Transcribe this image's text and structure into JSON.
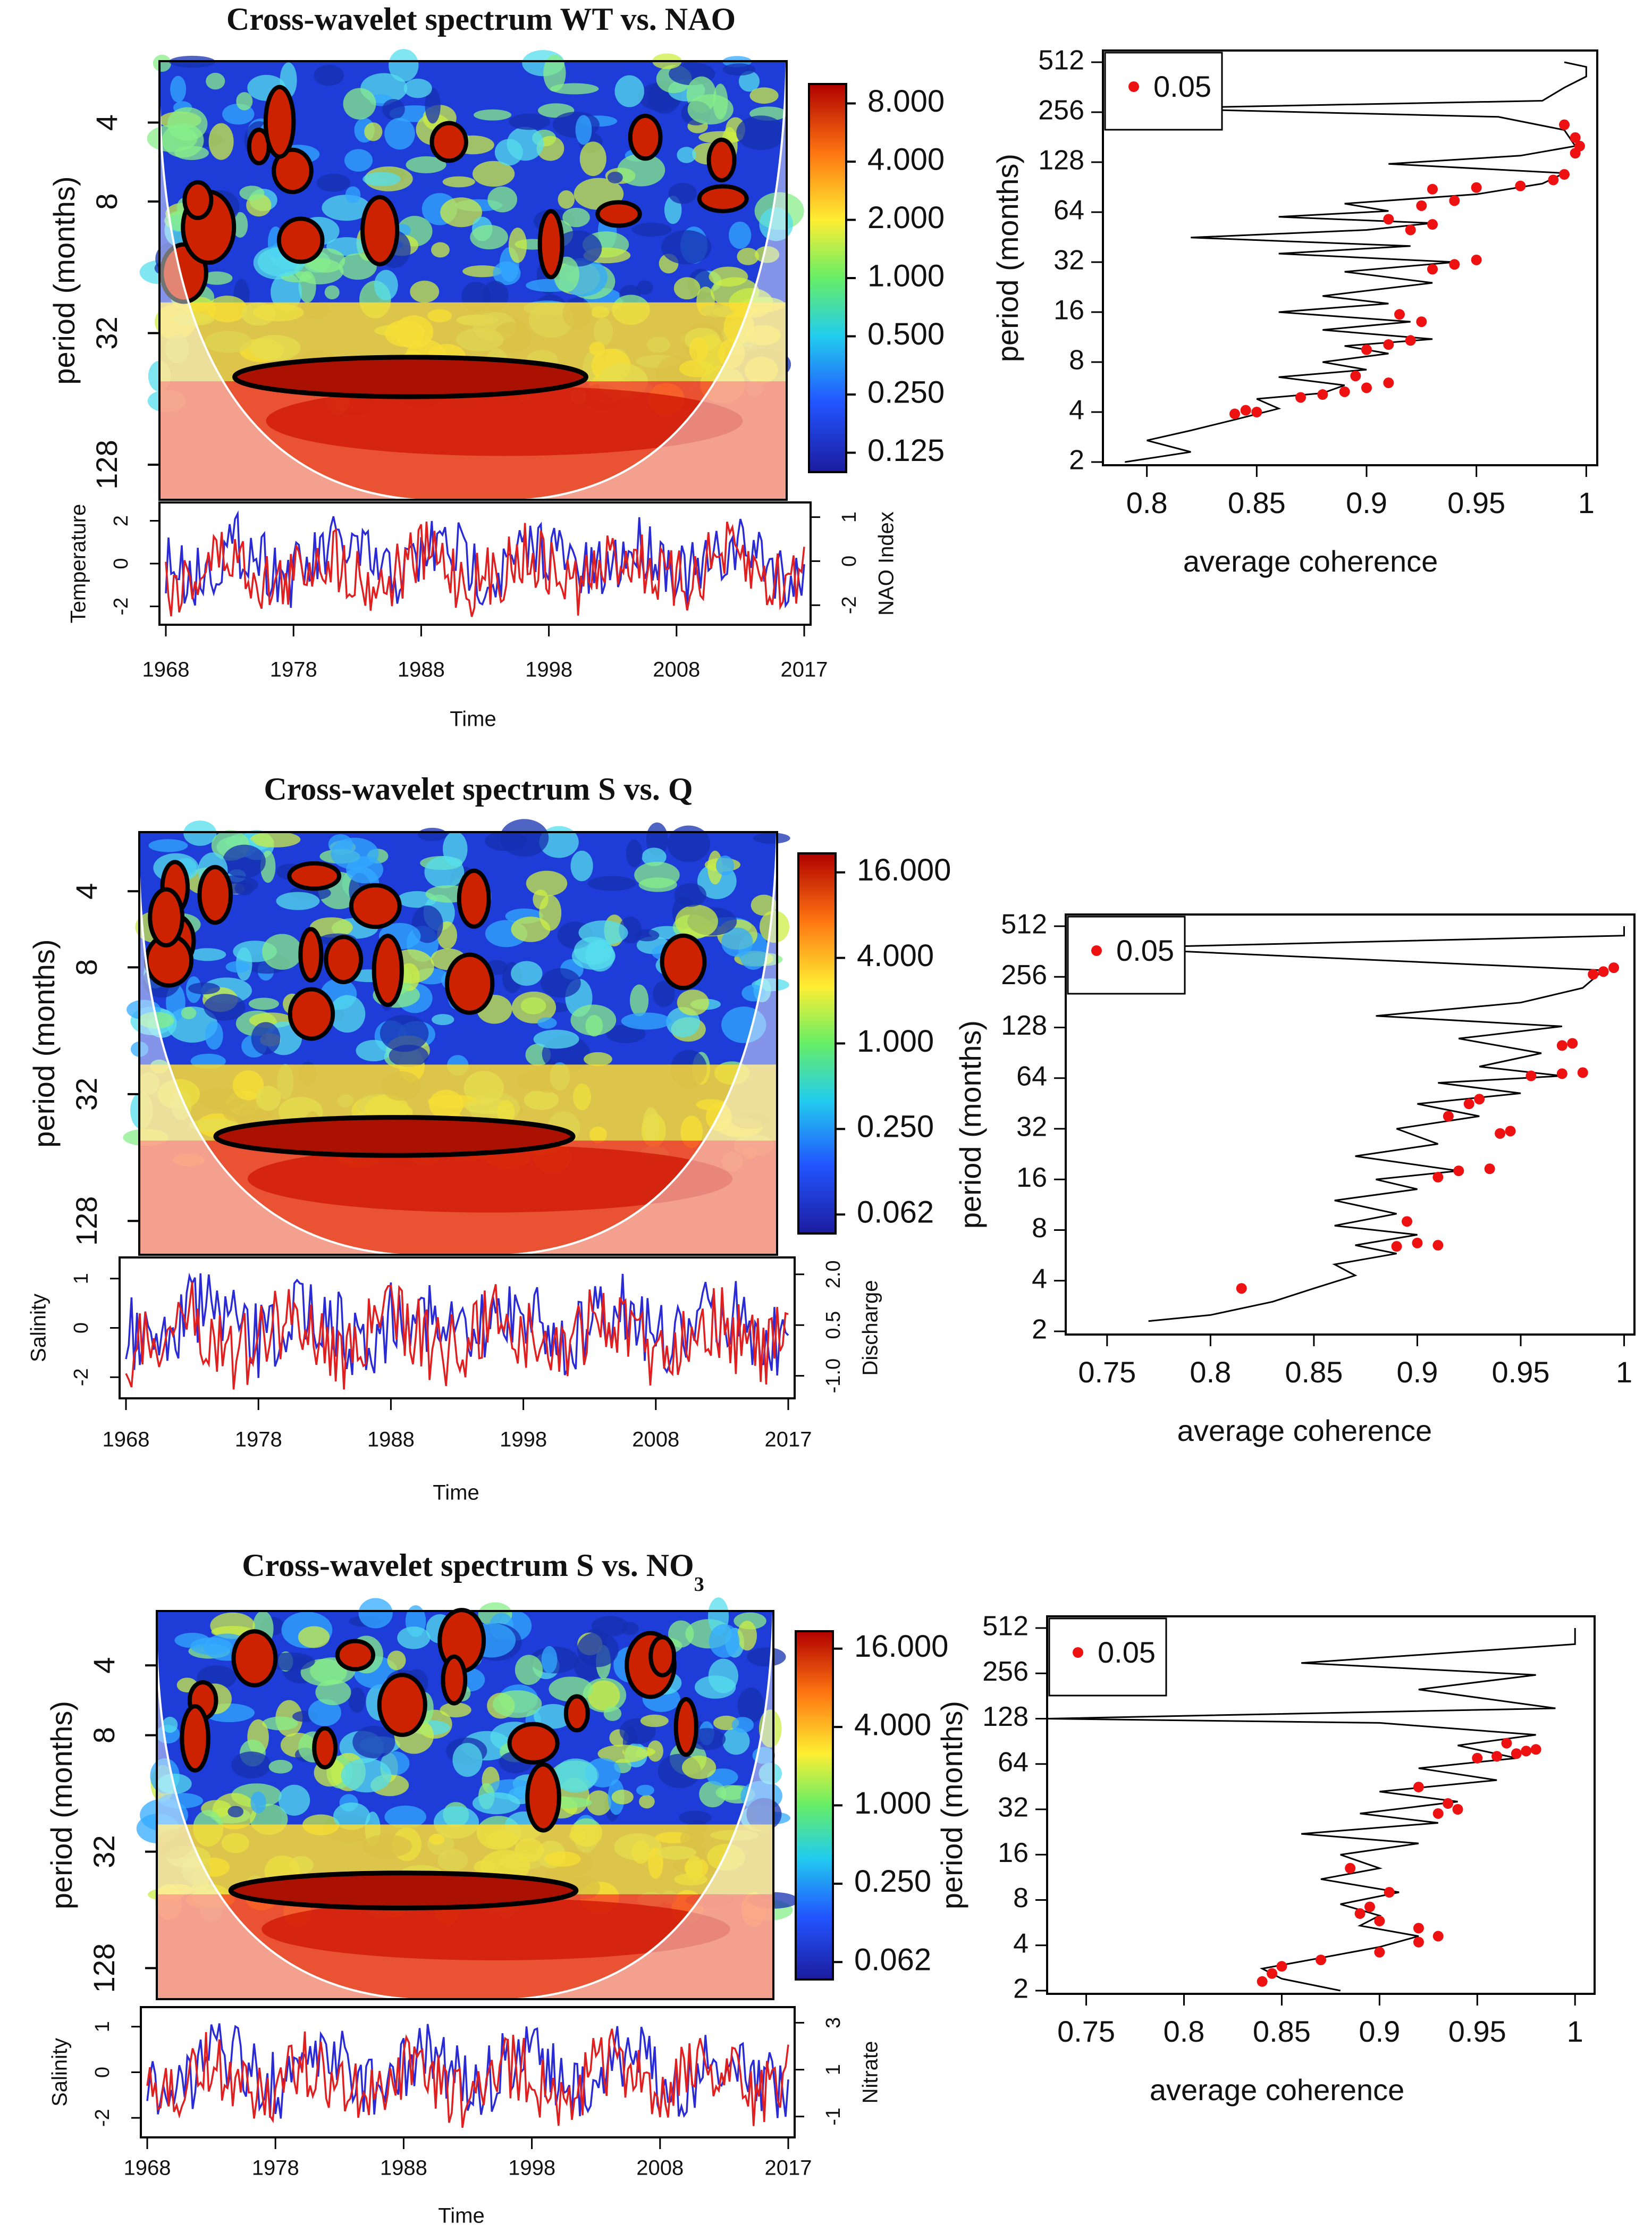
{
  "chart_data": [
    {
      "type": "heatmap",
      "title": "Cross-wavelet spectrum WT vs. NAO",
      "ylabel": "period (months)",
      "yticks": [
        "4",
        "8",
        "32",
        "128"
      ],
      "colorbar_ticks": [
        "8.000",
        "4.000",
        "2.000",
        "1.000",
        "0.500",
        "0.250",
        "0.125"
      ],
      "colors": {
        "low": "#1a1aa0",
        "mid": "#ffff40",
        "high": "#b00000"
      },
      "ts": {
        "left_label": "Temperature",
        "left_ticks": [
          "2",
          "0",
          "-2"
        ],
        "right_label": "NAO Index",
        "right_ticks": [
          "1",
          "0",
          "-2"
        ],
        "xlabel": "Time",
        "x_ticks": [
          "1968",
          "1978",
          "1988",
          "1998",
          "2008",
          "2017"
        ],
        "series": [
          {
            "name": "Temperature",
            "color": "#2b2bd6"
          },
          {
            "name": "NAO Index",
            "color": "#e02020"
          }
        ]
      },
      "coherence": {
        "xlabel": "average coherence",
        "ylabel": "period (months)",
        "x_ticks": [
          "0.8",
          "0.85",
          "0.9",
          "0.95",
          "1"
        ],
        "xlim": [
          0.78,
          1.005
        ],
        "y_ticks": [
          "512",
          "256",
          "128",
          "64",
          "32",
          "16",
          "8",
          "4",
          "2"
        ],
        "legend": "0.05",
        "line": [
          [
            0.79,
            2
          ],
          [
            0.82,
            2.3
          ],
          [
            0.8,
            2.7
          ],
          [
            0.82,
            3.1
          ],
          [
            0.84,
            3.6
          ],
          [
            0.86,
            4.2
          ],
          [
            0.85,
            4.8
          ],
          [
            0.88,
            5.2
          ],
          [
            0.89,
            5.8
          ],
          [
            0.86,
            6.5
          ],
          [
            0.9,
            7.2
          ],
          [
            0.88,
            8
          ],
          [
            0.91,
            9
          ],
          [
            0.89,
            10
          ],
          [
            0.93,
            11
          ],
          [
            0.88,
            12.5
          ],
          [
            0.92,
            14
          ],
          [
            0.86,
            16
          ],
          [
            0.91,
            18
          ],
          [
            0.88,
            20
          ],
          [
            0.93,
            24
          ],
          [
            0.89,
            28
          ],
          [
            0.94,
            32
          ],
          [
            0.86,
            36
          ],
          [
            0.92,
            40
          ],
          [
            0.82,
            45
          ],
          [
            0.9,
            50
          ],
          [
            0.93,
            55
          ],
          [
            0.86,
            60
          ],
          [
            0.91,
            65
          ],
          [
            0.89,
            72
          ],
          [
            0.95,
            82
          ],
          [
            0.98,
            95
          ],
          [
            0.99,
            110
          ],
          [
            0.91,
            125
          ],
          [
            0.97,
            140
          ],
          [
            0.995,
            160
          ],
          [
            0.99,
            200
          ],
          [
            0.96,
            240
          ],
          [
            0.8,
            270
          ],
          [
            0.98,
            300
          ],
          [
            0.99,
            360
          ],
          [
            1.0,
            420
          ],
          [
            1.0,
            480
          ],
          [
            0.99,
            512
          ]
        ],
        "points": [
          [
            0.84,
            3.9
          ],
          [
            0.845,
            4.1
          ],
          [
            0.85,
            4.0
          ],
          [
            0.87,
            4.9
          ],
          [
            0.88,
            5.1
          ],
          [
            0.89,
            5.3
          ],
          [
            0.9,
            5.6
          ],
          [
            0.91,
            6.0
          ],
          [
            0.895,
            6.6
          ],
          [
            0.9,
            9.5
          ],
          [
            0.91,
            10.2
          ],
          [
            0.92,
            10.8
          ],
          [
            0.925,
            14
          ],
          [
            0.915,
            15.5
          ],
          [
            0.93,
            29
          ],
          [
            0.94,
            31
          ],
          [
            0.95,
            33
          ],
          [
            0.92,
            50
          ],
          [
            0.93,
            54
          ],
          [
            0.91,
            58
          ],
          [
            0.925,
            70
          ],
          [
            0.94,
            75
          ],
          [
            0.93,
            88
          ],
          [
            0.95,
            90
          ],
          [
            0.97,
            92
          ],
          [
            0.985,
            100
          ],
          [
            0.99,
            108
          ],
          [
            0.995,
            145
          ],
          [
            0.997,
            160
          ],
          [
            0.995,
            180
          ],
          [
            0.99,
            215
          ]
        ]
      }
    },
    {
      "type": "heatmap",
      "title": "Cross-wavelet spectrum S vs. Q",
      "ylabel": "period (months)",
      "yticks": [
        "4",
        "8",
        "32",
        "128"
      ],
      "colorbar_ticks": [
        "16.000",
        "4.000",
        "1.000",
        "0.250",
        "0.062"
      ],
      "colors": {
        "low": "#1a1aa0",
        "mid": "#ffff40",
        "high": "#b00000"
      },
      "ts": {
        "left_label": "Salinity",
        "left_ticks": [
          "1",
          "0",
          "-2"
        ],
        "right_label": "Discharge",
        "right_ticks": [
          "2.0",
          "0.5",
          "-1.0"
        ],
        "xlabel": "Time",
        "x_ticks": [
          "1968",
          "1978",
          "1988",
          "1998",
          "2008",
          "2017"
        ],
        "series": [
          {
            "name": "Salinity",
            "color": "#2b2bd6"
          },
          {
            "name": "Discharge",
            "color": "#e02020"
          }
        ]
      },
      "coherence": {
        "xlabel": "average coherence",
        "ylabel": "period (months)",
        "x_ticks": [
          "0.75",
          "0.8",
          "0.85",
          "0.9",
          "0.95",
          "1"
        ],
        "xlim": [
          0.73,
          1.005
        ],
        "y_ticks": [
          "512",
          "256",
          "128",
          "64",
          "32",
          "16",
          "8",
          "4",
          "2"
        ],
        "legend": "0.05",
        "line": [
          [
            0.77,
            2.3
          ],
          [
            0.8,
            2.5
          ],
          [
            0.83,
            3.0
          ],
          [
            0.85,
            3.6
          ],
          [
            0.87,
            4.3
          ],
          [
            0.86,
            5
          ],
          [
            0.89,
            5.8
          ],
          [
            0.87,
            6.5
          ],
          [
            0.9,
            7.5
          ],
          [
            0.86,
            8.5
          ],
          [
            0.89,
            10
          ],
          [
            0.86,
            12
          ],
          [
            0.9,
            14
          ],
          [
            0.88,
            16
          ],
          [
            0.92,
            18
          ],
          [
            0.87,
            22
          ],
          [
            0.91,
            26
          ],
          [
            0.89,
            32
          ],
          [
            0.93,
            38
          ],
          [
            0.9,
            45
          ],
          [
            0.95,
            52
          ],
          [
            0.91,
            60
          ],
          [
            0.97,
            66
          ],
          [
            0.93,
            75
          ],
          [
            0.96,
            90
          ],
          [
            0.92,
            110
          ],
          [
            0.97,
            130
          ],
          [
            0.88,
            150
          ],
          [
            0.95,
            180
          ],
          [
            0.98,
            220
          ],
          [
            0.99,
            280
          ],
          [
            0.75,
            380
          ],
          [
            1.0,
            450
          ],
          [
            1.0,
            512
          ]
        ],
        "points": [
          [
            0.815,
            3.6
          ],
          [
            0.89,
            6.4
          ],
          [
            0.9,
            6.7
          ],
          [
            0.91,
            6.5
          ],
          [
            0.895,
            9
          ],
          [
            0.91,
            16.5
          ],
          [
            0.92,
            18
          ],
          [
            0.935,
            18.5
          ],
          [
            0.94,
            30
          ],
          [
            0.945,
            31
          ],
          [
            0.915,
            38
          ],
          [
            0.925,
            45
          ],
          [
            0.93,
            48
          ],
          [
            0.955,
            66
          ],
          [
            0.97,
            68
          ],
          [
            0.98,
            69
          ],
          [
            0.97,
            100
          ],
          [
            0.975,
            103
          ],
          [
            0.985,
            265
          ],
          [
            0.99,
            275
          ],
          [
            0.995,
            290
          ]
        ]
      }
    },
    {
      "type": "heatmap",
      "title": "Cross-wavelet spectrum S vs. NO",
      "title_sub": "3",
      "ylabel": "period (months)",
      "yticks": [
        "4",
        "8",
        "32",
        "128"
      ],
      "colorbar_ticks": [
        "16.000",
        "4.000",
        "1.000",
        "0.250",
        "0.062"
      ],
      "colors": {
        "low": "#1a1aa0",
        "mid": "#ffff40",
        "high": "#b00000"
      },
      "ts": {
        "left_label": "Salinity",
        "left_ticks": [
          "1",
          "0",
          "-2"
        ],
        "right_label": "Nitrate",
        "right_ticks": [
          "3",
          "1",
          "-1"
        ],
        "xlabel": "Time",
        "x_ticks": [
          "1968",
          "1978",
          "1988",
          "1998",
          "2008",
          "2017"
        ],
        "series": [
          {
            "name": "Salinity",
            "color": "#2b2bd6"
          },
          {
            "name": "Nitrate",
            "color": "#e02020"
          }
        ]
      },
      "coherence": {
        "xlabel": "average coherence",
        "ylabel": "period (months)",
        "x_ticks": [
          "0.75",
          "0.8",
          "0.85",
          "0.9",
          "0.95",
          "1"
        ],
        "xlim": [
          0.73,
          1.01
        ],
        "y_ticks": [
          "512",
          "256",
          "128",
          "64",
          "32",
          "16",
          "8",
          "4",
          "2"
        ],
        "legend": "0.05",
        "line": [
          [
            0.88,
            2
          ],
          [
            0.85,
            2.4
          ],
          [
            0.84,
            2.8
          ],
          [
            0.87,
            3.3
          ],
          [
            0.9,
            3.9
          ],
          [
            0.92,
            4.6
          ],
          [
            0.89,
            5.4
          ],
          [
            0.9,
            6.3
          ],
          [
            0.88,
            7.5
          ],
          [
            0.91,
            9
          ],
          [
            0.87,
            11
          ],
          [
            0.9,
            13
          ],
          [
            0.88,
            16
          ],
          [
            0.92,
            19
          ],
          [
            0.86,
            22
          ],
          [
            0.93,
            26
          ],
          [
            0.89,
            30
          ],
          [
            0.94,
            36
          ],
          [
            0.9,
            42
          ],
          [
            0.96,
            50
          ],
          [
            0.92,
            60
          ],
          [
            0.97,
            70
          ],
          [
            0.94,
            85
          ],
          [
            0.98,
            100
          ],
          [
            0.9,
            120
          ],
          [
            0.73,
            128
          ],
          [
            0.99,
            150
          ],
          [
            0.92,
            200
          ],
          [
            0.98,
            250
          ],
          [
            0.86,
            300
          ],
          [
            1.0,
            400
          ],
          [
            1.0,
            512
          ]
        ],
        "points": [
          [
            0.84,
            2.3
          ],
          [
            0.845,
            2.6
          ],
          [
            0.85,
            2.9
          ],
          [
            0.87,
            3.2
          ],
          [
            0.9,
            3.6
          ],
          [
            0.92,
            4.2
          ],
          [
            0.93,
            4.6
          ],
          [
            0.92,
            5.2
          ],
          [
            0.9,
            5.8
          ],
          [
            0.89,
            6.5
          ],
          [
            0.895,
            7.2
          ],
          [
            0.905,
            9
          ],
          [
            0.885,
            13
          ],
          [
            0.93,
            30
          ],
          [
            0.94,
            32
          ],
          [
            0.935,
            35
          ],
          [
            0.92,
            45
          ],
          [
            0.95,
            70
          ],
          [
            0.96,
            72
          ],
          [
            0.97,
            75
          ],
          [
            0.975,
            78
          ],
          [
            0.98,
            80
          ],
          [
            0.965,
            88
          ]
        ]
      }
    }
  ]
}
